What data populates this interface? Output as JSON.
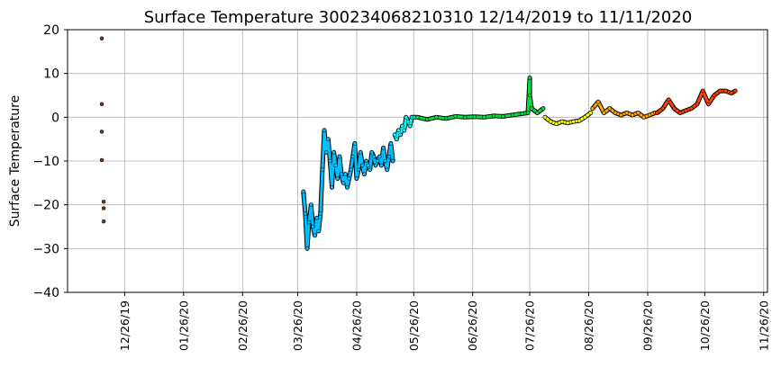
{
  "chart_data": {
    "type": "scatter",
    "title": "Surface Temperature 300234068210310  12/14/2019 to 11/11/2020",
    "xlabel": "",
    "ylabel": "Surface Temperature",
    "ylim": [
      -40,
      20
    ],
    "xlim": [
      "2019-11-26",
      "2020-11-28"
    ],
    "y_ticks": [
      -40,
      -30,
      -20,
      -10,
      0,
      10,
      20
    ],
    "x_ticks": [
      "2019-12-26",
      "2020-01-26",
      "2020-02-26",
      "2020-03-26",
      "2020-04-26",
      "2020-05-26",
      "2020-06-26",
      "2020-07-26",
      "2020-08-26",
      "2020-09-26",
      "2020-10-26",
      "2020-11-26"
    ],
    "x_tick_labels": [
      "12/26/19",
      "01/26/20",
      "02/26/20",
      "03/26/20",
      "04/26/20",
      "05/26/20",
      "06/26/20",
      "07/26/20",
      "08/26/20",
      "09/26/20",
      "10/26/20",
      "11/26/20"
    ],
    "grid": true,
    "legend": "none",
    "marker_edge_color": "#000000",
    "point_color_scale": [
      "#5a3a1a",
      "#00bfff",
      "#00ffff",
      "#00e000",
      "#ffff00",
      "#ff9900",
      "#ff3300",
      "#ff0000"
    ],
    "points": [
      {
        "x": "2019-12-14",
        "y": 18,
        "color": "#6b3a1a"
      },
      {
        "x": "2019-12-14",
        "y": 3,
        "color": "#6b3a1a"
      },
      {
        "x": "2019-12-14",
        "y": -3.3,
        "color": "#6b3a1a"
      },
      {
        "x": "2019-12-14",
        "y": -9.8,
        "color": "#6b3a1a"
      },
      {
        "x": "2019-12-15",
        "y": -19.3,
        "color": "#6b3a1a"
      },
      {
        "x": "2019-12-15",
        "y": -20.8,
        "color": "#6b3a1a"
      },
      {
        "x": "2019-12-15",
        "y": -23.8,
        "color": "#6b3a1a"
      }
    ],
    "series": [
      {
        "color": "#00bfff",
        "x": [
          "2020-03-29",
          "2020-03-30",
          "2020-03-31",
          "2020-04-01",
          "2020-04-02",
          "2020-04-03",
          "2020-04-04",
          "2020-04-05",
          "2020-04-06",
          "2020-04-07",
          "2020-04-08",
          "2020-04-09",
          "2020-04-10",
          "2020-04-11",
          "2020-04-12",
          "2020-04-13",
          "2020-04-14",
          "2020-04-15",
          "2020-04-16",
          "2020-04-17",
          "2020-04-18",
          "2020-04-19",
          "2020-04-20",
          "2020-04-21",
          "2020-04-22",
          "2020-04-23",
          "2020-04-24",
          "2020-04-25",
          "2020-04-26",
          "2020-04-27",
          "2020-04-28",
          "2020-04-29",
          "2020-04-30",
          "2020-05-01",
          "2020-05-02",
          "2020-05-03",
          "2020-05-04",
          "2020-05-05",
          "2020-05-06",
          "2020-05-07",
          "2020-05-08",
          "2020-05-09",
          "2020-05-10",
          "2020-05-11",
          "2020-05-12",
          "2020-05-13",
          "2020-05-14",
          "2020-05-15"
        ],
        "y": [
          -17,
          -22,
          -30,
          -24,
          -20,
          -25,
          -27,
          -23,
          -26,
          -22,
          -12,
          -3,
          -8,
          -5,
          -10,
          -16,
          -8,
          -11,
          -14,
          -9,
          -13,
          -15,
          -13,
          -16,
          -14,
          -12,
          -9,
          -6,
          -14,
          -12,
          -8,
          -11,
          -13,
          -10,
          -11,
          -12,
          -8,
          -9,
          -11,
          -10,
          -9,
          -11,
          -7,
          -10,
          -12,
          -9,
          -6,
          -10
        ]
      },
      {
        "color": "#00ffff",
        "x": [
          "2020-05-16",
          "2020-05-17",
          "2020-05-18",
          "2020-05-19",
          "2020-05-20",
          "2020-05-21",
          "2020-05-22",
          "2020-05-23",
          "2020-05-24",
          "2020-05-25",
          "2020-05-26",
          "2020-05-27"
        ],
        "y": [
          -4,
          -5,
          -3,
          -4,
          -2,
          -3,
          0,
          -1,
          -2,
          0,
          0,
          0
        ]
      },
      {
        "color": "#00e040",
        "x": [
          "2020-05-28",
          "2020-06-02",
          "2020-06-07",
          "2020-06-12",
          "2020-06-17",
          "2020-06-22",
          "2020-06-27",
          "2020-07-02",
          "2020-07-07",
          "2020-07-12",
          "2020-07-17",
          "2020-07-22",
          "2020-07-25",
          "2020-07-26",
          "2020-07-26",
          "2020-07-27",
          "2020-07-30",
          "2020-08-02"
        ],
        "y": [
          0,
          -0.5,
          0,
          -0.3,
          0.2,
          0,
          0.1,
          0,
          0.3,
          0.2,
          0.5,
          0.8,
          1,
          9,
          5,
          2,
          1,
          2
        ]
      },
      {
        "color": "#ffff00",
        "x": [
          "2020-08-03",
          "2020-08-06",
          "2020-08-09",
          "2020-08-12",
          "2020-08-15",
          "2020-08-18",
          "2020-08-21",
          "2020-08-24",
          "2020-08-27"
        ],
        "y": [
          0,
          -1,
          -1.5,
          -1,
          -1.3,
          -1,
          -0.8,
          0,
          1
        ]
      },
      {
        "color": "#ffa500",
        "x": [
          "2020-08-28",
          "2020-08-31",
          "2020-09-03",
          "2020-09-06",
          "2020-09-09",
          "2020-09-12",
          "2020-09-15",
          "2020-09-18",
          "2020-09-21",
          "2020-09-24",
          "2020-09-27",
          "2020-09-30"
        ],
        "y": [
          2,
          3.5,
          1,
          2,
          1,
          0.5,
          1,
          0.5,
          1,
          0,
          0.5,
          1
        ]
      },
      {
        "color": "#ff4000",
        "x": [
          "2020-10-01",
          "2020-10-04",
          "2020-10-07",
          "2020-10-10",
          "2020-10-13",
          "2020-10-16",
          "2020-10-19",
          "2020-10-22",
          "2020-10-25",
          "2020-10-28",
          "2020-10-31",
          "2020-11-03",
          "2020-11-06",
          "2020-11-09",
          "2020-11-11"
        ],
        "y": [
          1,
          2,
          4,
          2,
          1,
          1.5,
          2,
          3,
          6,
          3,
          5,
          6,
          6,
          5.5,
          6
        ]
      }
    ]
  }
}
